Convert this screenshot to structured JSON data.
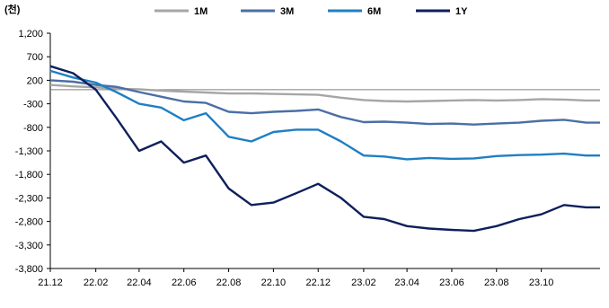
{
  "chart_data": {
    "type": "line",
    "unit_label": "(천)",
    "y_ticks": [
      "1,200",
      "700",
      "200",
      "-300",
      "-800",
      "-1,300",
      "-1,800",
      "-2,300",
      "-2,800",
      "-3,300",
      "-3,800"
    ],
    "x_ticks": [
      "21.12",
      "22.02",
      "22.04",
      "22.06",
      "22.08",
      "22.10",
      "22.12",
      "23.02",
      "23.04",
      "23.06",
      "23.08",
      "23.10"
    ],
    "ylim": [
      -3800,
      1200
    ],
    "xlim": [
      "2021-12-01",
      "2023-12-20"
    ],
    "legend_position": "top",
    "grid": false,
    "series": [
      {
        "name": "1M",
        "color": "#a6a6a6",
        "points": [
          [
            "2021-12-01",
            100
          ],
          [
            "2022-01-01",
            70
          ],
          [
            "2022-02-01",
            50
          ],
          [
            "2022-03-01",
            20
          ],
          [
            "2022-04-01",
            10
          ],
          [
            "2022-05-01",
            -20
          ],
          [
            "2022-06-01",
            -40
          ],
          [
            "2022-07-01",
            -60
          ],
          [
            "2022-08-01",
            -80
          ],
          [
            "2022-09-01",
            -80
          ],
          [
            "2022-10-01",
            -90
          ],
          [
            "2022-11-01",
            -100
          ],
          [
            "2022-12-01",
            -110
          ],
          [
            "2023-01-01",
            -170
          ],
          [
            "2023-02-01",
            -220
          ],
          [
            "2023-03-01",
            -240
          ],
          [
            "2023-04-01",
            -250
          ],
          [
            "2023-05-01",
            -240
          ],
          [
            "2023-06-01",
            -230
          ],
          [
            "2023-07-01",
            -220
          ],
          [
            "2023-08-01",
            -230
          ],
          [
            "2023-09-01",
            -220
          ],
          [
            "2023-10-01",
            -200
          ],
          [
            "2023-11-01",
            -210
          ],
          [
            "2023-12-01",
            -230
          ],
          [
            "2023-12-20",
            -230
          ]
        ]
      },
      {
        "name": "3M",
        "color": "#4a6fa5",
        "points": [
          [
            "2021-12-01",
            200
          ],
          [
            "2022-01-01",
            170
          ],
          [
            "2022-02-01",
            100
          ],
          [
            "2022-03-01",
            60
          ],
          [
            "2022-04-01",
            -50
          ],
          [
            "2022-05-01",
            -150
          ],
          [
            "2022-06-01",
            -250
          ],
          [
            "2022-07-01",
            -280
          ],
          [
            "2022-08-01",
            -470
          ],
          [
            "2022-09-01",
            -500
          ],
          [
            "2022-10-01",
            -470
          ],
          [
            "2022-11-01",
            -450
          ],
          [
            "2022-12-01",
            -420
          ],
          [
            "2023-01-01",
            -580
          ],
          [
            "2023-02-01",
            -690
          ],
          [
            "2023-03-01",
            -680
          ],
          [
            "2023-04-01",
            -700
          ],
          [
            "2023-05-01",
            -730
          ],
          [
            "2023-06-01",
            -720
          ],
          [
            "2023-07-01",
            -740
          ],
          [
            "2023-08-01",
            -720
          ],
          [
            "2023-09-01",
            -700
          ],
          [
            "2023-10-01",
            -660
          ],
          [
            "2023-11-01",
            -640
          ],
          [
            "2023-12-01",
            -700
          ],
          [
            "2023-12-20",
            -700
          ]
        ]
      },
      {
        "name": "6M",
        "color": "#1f7fc4",
        "points": [
          [
            "2021-12-01",
            400
          ],
          [
            "2022-01-01",
            260
          ],
          [
            "2022-02-01",
            150
          ],
          [
            "2022-03-01",
            -50
          ],
          [
            "2022-04-01",
            -300
          ],
          [
            "2022-05-01",
            -380
          ],
          [
            "2022-06-01",
            -650
          ],
          [
            "2022-07-01",
            -500
          ],
          [
            "2022-08-01",
            -1000
          ],
          [
            "2022-09-01",
            -1100
          ],
          [
            "2022-10-01",
            -900
          ],
          [
            "2022-11-01",
            -850
          ],
          [
            "2022-12-01",
            -850
          ],
          [
            "2023-01-01",
            -1100
          ],
          [
            "2023-02-01",
            -1400
          ],
          [
            "2023-03-01",
            -1420
          ],
          [
            "2023-04-01",
            -1480
          ],
          [
            "2023-05-01",
            -1450
          ],
          [
            "2023-06-01",
            -1470
          ],
          [
            "2023-07-01",
            -1460
          ],
          [
            "2023-08-01",
            -1410
          ],
          [
            "2023-09-01",
            -1390
          ],
          [
            "2023-10-01",
            -1380
          ],
          [
            "2023-11-01",
            -1360
          ],
          [
            "2023-12-01",
            -1400
          ],
          [
            "2023-12-20",
            -1400
          ]
        ]
      },
      {
        "name": "1Y",
        "color": "#0d1f5c",
        "points": [
          [
            "2021-12-01",
            500
          ],
          [
            "2022-01-01",
            350
          ],
          [
            "2022-02-01",
            0
          ],
          [
            "2022-03-01",
            -600
          ],
          [
            "2022-04-01",
            -1300
          ],
          [
            "2022-05-01",
            -1100
          ],
          [
            "2022-06-01",
            -1550
          ],
          [
            "2022-07-01",
            -1400
          ],
          [
            "2022-08-01",
            -2100
          ],
          [
            "2022-09-01",
            -2450
          ],
          [
            "2022-10-01",
            -2400
          ],
          [
            "2022-11-01",
            -2200
          ],
          [
            "2022-12-01",
            -2000
          ],
          [
            "2023-01-01",
            -2300
          ],
          [
            "2023-02-01",
            -2700
          ],
          [
            "2023-03-01",
            -2750
          ],
          [
            "2023-04-01",
            -2900
          ],
          [
            "2023-05-01",
            -2950
          ],
          [
            "2023-06-01",
            -2980
          ],
          [
            "2023-07-01",
            -3000
          ],
          [
            "2023-08-01",
            -2900
          ],
          [
            "2023-09-01",
            -2750
          ],
          [
            "2023-10-01",
            -2650
          ],
          [
            "2023-11-01",
            -2450
          ],
          [
            "2023-12-01",
            -2500
          ],
          [
            "2023-12-20",
            -2500
          ]
        ]
      }
    ]
  }
}
